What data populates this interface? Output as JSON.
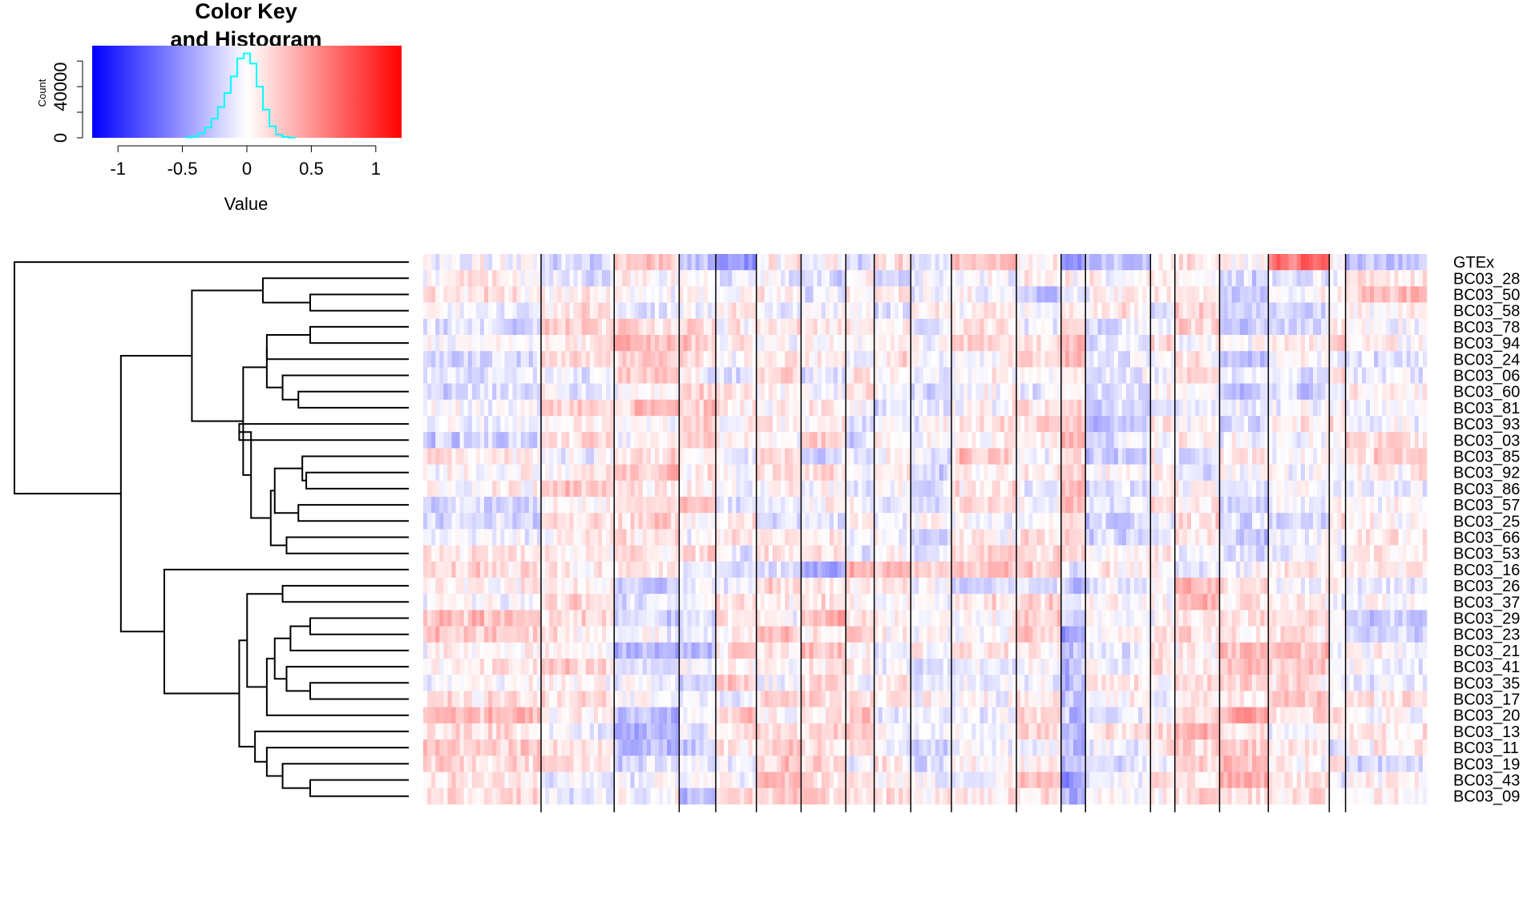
{
  "chart_data": {
    "type": "heatmap",
    "color_key": {
      "title_line1": "Color Key",
      "title_line2": "and Histogram",
      "xlabel": "Value",
      "ylabel": "Count",
      "x_ticks": [
        "-1",
        "-0.5",
        "0",
        "0.5",
        "1"
      ],
      "x_tick_values": [
        -1,
        -0.5,
        0,
        0.5,
        1
      ],
      "y_ticks": [
        "0",
        "40000"
      ],
      "y_tick_values": [
        0,
        40000
      ],
      "y_minor_ticks": [
        20000,
        60000
      ],
      "value_range": [
        -1.2,
        1.2
      ],
      "colors": {
        "low": "#0000ff",
        "mid": "#ffffff",
        "high": "#ff0000",
        "histogram": "#00ffff"
      },
      "histogram": {
        "bin_centers": [
          -0.45,
          -0.4,
          -0.35,
          -0.3,
          -0.25,
          -0.2,
          -0.15,
          -0.1,
          -0.05,
          0,
          0.05,
          0.1,
          0.15,
          0.2,
          0.25,
          0.3,
          0.35
        ],
        "counts": [
          300,
          1200,
          3500,
          8000,
          15000,
          24000,
          35000,
          48000,
          62000,
          66000,
          58000,
          40000,
          22000,
          9000,
          2500,
          700,
          150
        ]
      }
    },
    "rows": [
      "GTEx",
      "BC03_28",
      "BC03_50",
      "BC03_58",
      "BC03_78",
      "BC03_94",
      "BC03_24",
      "BC03_06",
      "BC03_60",
      "BC03_81",
      "BC03_93",
      "BC03_03",
      "BC03_85",
      "BC03_92",
      "BC03_86",
      "BC03_57",
      "BC03_25",
      "BC03_66",
      "BC03_53",
      "BC03_16",
      "BC03_26",
      "BC03_37",
      "BC03_29",
      "BC03_23",
      "BC03_21",
      "BC03_41",
      "BC03_35",
      "BC03_17",
      "BC03_20",
      "BC03_13",
      "BC03_11",
      "BC03_19",
      "BC03_43",
      "BC03_09"
    ],
    "column_groups": [
      {
        "n": 29,
        "bias": [
          0.05,
          -0.05,
          -0.05,
          0.05,
          0.15
        ]
      },
      {
        "n": 18,
        "bias": [
          -0.3,
          0,
          0.1,
          0.1,
          0.05
        ]
      },
      {
        "n": 16,
        "bias": [
          0.05,
          0.05,
          0.15,
          0.15,
          -0.2
        ]
      },
      {
        "n": 9,
        "bias": [
          -0.3,
          -0.05,
          0.1,
          0.15,
          -0.15
        ]
      },
      {
        "n": 10,
        "bias": [
          -0.3,
          0,
          0,
          -0.1,
          0.1
        ]
      },
      {
        "n": 11,
        "bias": [
          -0.1,
          -0.05,
          0.05,
          -0.1,
          0.1
        ]
      },
      {
        "n": 11,
        "bias": [
          0.05,
          -0.05,
          0,
          -0.35,
          0.15
        ]
      },
      {
        "n": 7,
        "bias": [
          -0.25,
          0,
          -0.05,
          0.35,
          0.1
        ]
      },
      {
        "n": 9,
        "bias": [
          0.1,
          -0.05,
          0,
          0.1,
          0.05
        ]
      },
      {
        "n": 10,
        "bias": [
          -0.2,
          0,
          -0.05,
          0.15,
          -0.05
        ]
      },
      {
        "n": 16,
        "bias": [
          0.25,
          0.1,
          0.1,
          0.1,
          -0.05
        ]
      },
      {
        "n": 11,
        "bias": [
          0.05,
          -0.1,
          0.05,
          0.05,
          0.1
        ]
      },
      {
        "n": 6,
        "bias": [
          -0.6,
          0,
          0.25,
          -0.25,
          -0.3
        ]
      },
      {
        "n": 16,
        "bias": [
          -0.15,
          -0.1,
          -0.1,
          0.05,
          0.05
        ]
      },
      {
        "n": 6,
        "bias": [
          0.15,
          -0.05,
          0,
          0.1,
          0.05
        ]
      },
      {
        "n": 11,
        "bias": [
          0.15,
          0.05,
          0.05,
          0,
          0.2
        ]
      },
      {
        "n": 12,
        "bias": [
          0.15,
          -0.15,
          -0.1,
          0.1,
          0.25
        ]
      },
      {
        "n": 15,
        "bias": [
          0.55,
          -0.15,
          -0.05,
          0.1,
          0.15
        ]
      },
      {
        "n": 4,
        "bias": [
          -0.05,
          0,
          0,
          0.05,
          0
        ]
      },
      {
        "n": 20,
        "bias": [
          -0.3,
          0.1,
          0.05,
          0.1,
          -0.05
        ]
      }
    ],
    "row_profile": [
      0,
      1,
      1,
      1,
      2,
      2,
      2,
      2,
      2,
      2,
      2,
      2,
      2,
      2,
      2,
      2,
      2,
      2,
      2,
      3,
      4,
      4,
      4,
      4,
      4,
      4,
      4,
      4,
      4,
      4,
      4,
      4,
      4,
      4
    ],
    "dendrogram": {
      "merges": [
        [
          "BC03_60",
          "BC03_81",
          0.72
        ],
        [
          "BC03_92",
          "BC03_86",
          0.74
        ],
        [
          "BC03_78",
          "BC03_94",
          0.75
        ],
        [
          "BC03_50",
          "BC03_58",
          0.75
        ],
        [
          "BC03_29",
          "BC03_23",
          0.75
        ],
        [
          "BC03_35",
          "BC03_17",
          0.75
        ],
        [
          "BC03_43",
          "BC03_09",
          0.75
        ],
        [
          "BC03_85",
          "m1",
          0.73
        ],
        [
          "BC03_57",
          "BC03_25",
          0.72
        ],
        [
          "BC03_66",
          "BC03_53",
          0.69
        ],
        [
          "BC03_06",
          "m0",
          0.68
        ],
        [
          "m4",
          "BC03_21",
          0.7
        ],
        [
          "BC03_26",
          "BC03_37",
          0.68
        ],
        [
          "BC03_41",
          "m5",
          0.69
        ],
        [
          "BC03_19",
          "m6",
          0.68
        ],
        [
          "m7",
          "m8",
          0.66
        ],
        [
          "m2",
          "BC03_24",
          0.64
        ],
        [
          "BC03_28",
          "m3",
          0.63
        ],
        [
          "m11",
          "m13",
          0.66
        ],
        [
          "BC03_11",
          "m14",
          0.64
        ],
        [
          "m15",
          "m9",
          0.65
        ],
        [
          "m16",
          "m10",
          0.64
        ],
        [
          "BC03_93",
          "BC03_03",
          0.57
        ],
        [
          "m18",
          "BC03_20",
          0.64
        ],
        [
          "BC03_13",
          "m19",
          0.61
        ],
        [
          "m22",
          "m20",
          0.6
        ],
        [
          "m21",
          "m25",
          0.58
        ],
        [
          "m12",
          "m23",
          0.59
        ],
        [
          "m27",
          "m24",
          0.57
        ],
        [
          "m17",
          "m26",
          0.45
        ],
        [
          "BC03_16",
          "m28",
          0.38
        ],
        [
          "m29",
          "m30",
          0.27
        ],
        [
          "GTEx",
          "m31",
          0.0
        ]
      ]
    }
  }
}
